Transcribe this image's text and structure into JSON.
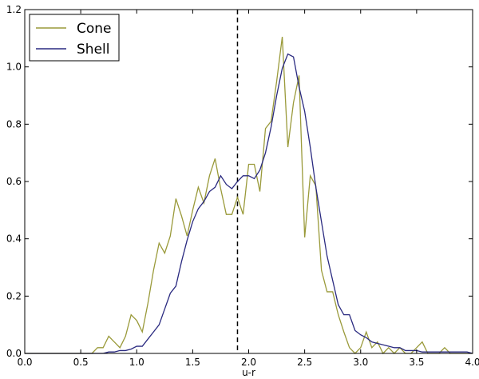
{
  "chart_data": {
    "type": "line",
    "title": "",
    "xlabel": "u-r",
    "ylabel": "",
    "xlim": [
      0.0,
      4.0
    ],
    "ylim": [
      0.0,
      1.2
    ],
    "xticks": [
      0.0,
      0.5,
      1.0,
      1.5,
      2.0,
      2.5,
      3.0,
      3.5,
      4.0
    ],
    "yticks": [
      0.0,
      0.2,
      0.4,
      0.6,
      0.8,
      1.0,
      1.2
    ],
    "xtick_labels": [
      "0.0",
      "0.5",
      "1.0",
      "1.5",
      "2.0",
      "2.5",
      "3.0",
      "3.5",
      "4.0"
    ],
    "ytick_labels": [
      "0.0",
      "0.2",
      "0.4",
      "0.6",
      "0.8",
      "1.0",
      "1.2"
    ],
    "grid": false,
    "legend_position": "top-left",
    "vline": {
      "x": 1.9,
      "style": "dashed",
      "color": "#000000"
    },
    "series": [
      {
        "name": "Cone",
        "color": "#9a9a3a",
        "x": [
          0.0,
          0.05,
          0.1,
          0.15,
          0.2,
          0.25,
          0.3,
          0.35,
          0.4,
          0.45,
          0.5,
          0.55,
          0.6,
          0.65,
          0.7,
          0.75,
          0.8,
          0.85,
          0.9,
          0.95,
          1.0,
          1.05,
          1.1,
          1.15,
          1.2,
          1.25,
          1.3,
          1.35,
          1.4,
          1.45,
          1.5,
          1.55,
          1.6,
          1.65,
          1.7,
          1.75,
          1.8,
          1.85,
          1.9,
          1.95,
          2.0,
          2.05,
          2.1,
          2.15,
          2.2,
          2.25,
          2.3,
          2.35,
          2.4,
          2.45,
          2.5,
          2.55,
          2.6,
          2.65,
          2.7,
          2.75,
          2.8,
          2.85,
          2.9,
          2.95,
          3.0,
          3.05,
          3.1,
          3.15,
          3.2,
          3.25,
          3.3,
          3.35,
          3.4,
          3.45,
          3.5,
          3.55,
          3.6,
          3.65,
          3.7,
          3.75,
          3.8,
          3.85,
          3.9,
          3.95,
          4.0
        ],
        "y": [
          0.0,
          0.0,
          0.0,
          0.0,
          0.0,
          0.0,
          0.0,
          0.0,
          0.0,
          0.0,
          0.0,
          0.0,
          0.0,
          0.02,
          0.02,
          0.06,
          0.04,
          0.02,
          0.06,
          0.135,
          0.115,
          0.075,
          0.175,
          0.29,
          0.385,
          0.35,
          0.41,
          0.54,
          0.48,
          0.41,
          0.5,
          0.58,
          0.525,
          0.62,
          0.68,
          0.575,
          0.485,
          0.485,
          0.545,
          0.485,
          0.66,
          0.66,
          0.565,
          0.785,
          0.81,
          0.95,
          1.105,
          0.72,
          0.875,
          0.97,
          0.405,
          0.62,
          0.585,
          0.29,
          0.215,
          0.215,
          0.135,
          0.075,
          0.02,
          0.0,
          0.02,
          0.075,
          0.02,
          0.04,
          0.0,
          0.02,
          0.0,
          0.02,
          0.0,
          0.0,
          0.02,
          0.04,
          0.0,
          0.0,
          0.0,
          0.02,
          0.0,
          0.0,
          0.0,
          0.0,
          0.0
        ]
      },
      {
        "name": "Shell",
        "color": "#2a2a80",
        "x": [
          0.0,
          0.05,
          0.1,
          0.15,
          0.2,
          0.25,
          0.3,
          0.35,
          0.4,
          0.45,
          0.5,
          0.55,
          0.6,
          0.65,
          0.7,
          0.75,
          0.8,
          0.85,
          0.9,
          0.95,
          1.0,
          1.05,
          1.1,
          1.15,
          1.2,
          1.25,
          1.3,
          1.35,
          1.4,
          1.45,
          1.5,
          1.55,
          1.6,
          1.65,
          1.7,
          1.75,
          1.8,
          1.85,
          1.9,
          1.95,
          2.0,
          2.05,
          2.1,
          2.15,
          2.2,
          2.25,
          2.3,
          2.35,
          2.4,
          2.45,
          2.5,
          2.55,
          2.6,
          2.65,
          2.7,
          2.75,
          2.8,
          2.85,
          2.9,
          2.95,
          3.0,
          3.05,
          3.1,
          3.15,
          3.2,
          3.25,
          3.3,
          3.35,
          3.4,
          3.45,
          3.5,
          3.55,
          3.6,
          3.65,
          3.7,
          3.75,
          3.8,
          3.85,
          3.9,
          3.95,
          4.0
        ],
        "y": [
          0.0,
          0.0,
          0.0,
          0.0,
          0.0,
          0.0,
          0.0,
          0.0,
          0.0,
          0.0,
          0.0,
          0.0,
          0.0,
          0.0,
          0.0,
          0.005,
          0.005,
          0.01,
          0.01,
          0.015,
          0.025,
          0.025,
          0.05,
          0.075,
          0.1,
          0.155,
          0.21,
          0.235,
          0.32,
          0.395,
          0.46,
          0.505,
          0.53,
          0.565,
          0.58,
          0.62,
          0.59,
          0.575,
          0.6,
          0.62,
          0.62,
          0.61,
          0.64,
          0.7,
          0.79,
          0.9,
          0.995,
          1.045,
          1.035,
          0.93,
          0.845,
          0.72,
          0.58,
          0.46,
          0.34,
          0.255,
          0.17,
          0.135,
          0.135,
          0.08,
          0.065,
          0.055,
          0.04,
          0.035,
          0.03,
          0.025,
          0.02,
          0.02,
          0.01,
          0.01,
          0.01,
          0.005,
          0.005,
          0.005,
          0.005,
          0.005,
          0.005,
          0.005,
          0.005,
          0.005,
          0.0
        ]
      }
    ]
  }
}
